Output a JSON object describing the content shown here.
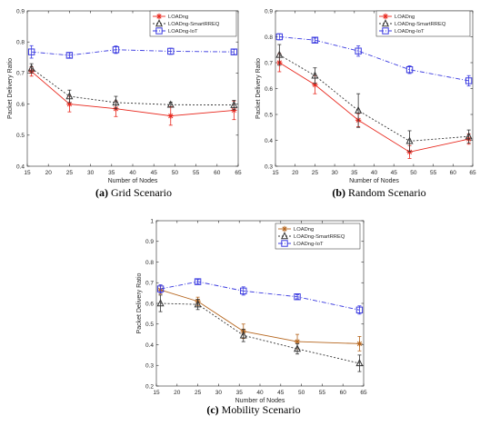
{
  "chart_data": [
    {
      "type": "line",
      "caption_label": "(a)",
      "caption_text": " Grid Scenario",
      "xlabel": "Number of Nodes",
      "ylabel": "Packet Delivery Ratio",
      "xlim": [
        15,
        65
      ],
      "ylim": [
        0.4,
        0.9
      ],
      "xticks": [
        15,
        20,
        25,
        30,
        35,
        40,
        45,
        50,
        55,
        60,
        65
      ],
      "yticks": [
        0.4,
        0.5,
        0.6,
        0.7,
        0.8,
        0.9
      ],
      "ytick_labels": [
        "0.4",
        "0.5",
        "0.6",
        "0.7",
        "0.8",
        "0.9"
      ],
      "grid": false,
      "legend_position": "top-right",
      "x": [
        16,
        25,
        36,
        49,
        64
      ],
      "series": [
        {
          "name": "LOADng",
          "color": "#e8261c",
          "marker": "star",
          "dash": "",
          "values": [
            0.705,
            0.6,
            0.585,
            0.562,
            0.58
          ],
          "errors": [
            0.015,
            0.025,
            0.025,
            0.03,
            0.03
          ]
        },
        {
          "name": "LOADng-SmartRREQ",
          "color": "#333333",
          "marker": "triangle",
          "dash": "2,2",
          "values": [
            0.715,
            0.625,
            0.605,
            0.598,
            0.597
          ],
          "errors": [
            0.015,
            0.02,
            0.02,
            0.008,
            0.015
          ]
        },
        {
          "name": "LOADng-IoT",
          "color": "#3a3ae0",
          "marker": "square",
          "dash": "5,2,1,2",
          "values": [
            0.768,
            0.757,
            0.775,
            0.77,
            0.768
          ],
          "errors": [
            0.02,
            0.008,
            0.012,
            0.01,
            0.008
          ]
        }
      ]
    },
    {
      "type": "line",
      "caption_label": "(b)",
      "caption_text": " Random Scenario",
      "xlabel": "Number of Nodes",
      "ylabel": "Packet Delivery Ratio",
      "xlim": [
        15,
        65
      ],
      "ylim": [
        0.3,
        0.9
      ],
      "xticks": [
        15,
        20,
        25,
        30,
        35,
        40,
        45,
        50,
        55,
        60,
        65
      ],
      "yticks": [
        0.3,
        0.4,
        0.5,
        0.6,
        0.7,
        0.8,
        0.9
      ],
      "ytick_labels": [
        "0.3",
        "0.4",
        "0.5",
        "0.6",
        "0.7",
        "0.8",
        "0.9"
      ],
      "grid": false,
      "legend_position": "top-right",
      "x": [
        16,
        25,
        36,
        49,
        64
      ],
      "series": [
        {
          "name": "LOADng",
          "color": "#e8261c",
          "marker": "star",
          "dash": "",
          "values": [
            0.7,
            0.615,
            0.478,
            0.355,
            0.405
          ],
          "errors": [
            0.035,
            0.035,
            0.025,
            0.025,
            0.02
          ]
        },
        {
          "name": "LOADng-SmartRREQ",
          "color": "#333333",
          "marker": "triangle",
          "dash": "2,2",
          "values": [
            0.73,
            0.65,
            0.515,
            0.397,
            0.415
          ],
          "errors": [
            0.04,
            0.03,
            0.065,
            0.04,
            0.025
          ]
        },
        {
          "name": "LOADng-IoT",
          "color": "#3a3ae0",
          "marker": "square",
          "dash": "5,2,1,2",
          "values": [
            0.8,
            0.787,
            0.745,
            0.673,
            0.63
          ],
          "errors": [
            0.012,
            0.008,
            0.02,
            0.015,
            0.02
          ]
        }
      ]
    },
    {
      "type": "line",
      "caption_label": "(c)",
      "caption_text": " Mobility Scenario",
      "xlabel": "Number of Nodes",
      "ylabel": "Packet Delivery Ratio",
      "xlim": [
        15,
        65
      ],
      "ylim": [
        0.2,
        1.0
      ],
      "xticks": [
        15,
        20,
        25,
        30,
        35,
        40,
        45,
        50,
        55,
        60,
        65
      ],
      "yticks": [
        0.2,
        0.3,
        0.4,
        0.5,
        0.6,
        0.7,
        0.8,
        0.9,
        1.0
      ],
      "ytick_labels": [
        "0.2",
        "0.3",
        "0.4",
        "0.5",
        "0.6",
        "0.7",
        "0.8",
        "0.9",
        "1"
      ],
      "grid": false,
      "legend_position": "top-right",
      "x": [
        16,
        25,
        36,
        49,
        64
      ],
      "series": [
        {
          "name": "LOADng",
          "color": "#b5651d",
          "marker": "star",
          "dash": "",
          "values": [
            0.665,
            0.61,
            0.465,
            0.415,
            0.405
          ],
          "errors": [
            0.02,
            0.02,
            0.035,
            0.035,
            0.035
          ]
        },
        {
          "name": "LOADng-SmartRREQ",
          "color": "#333333",
          "marker": "triangle",
          "dash": "2,2",
          "values": [
            0.6,
            0.595,
            0.445,
            0.38,
            0.31
          ],
          "errors": [
            0.04,
            0.025,
            0.03,
            0.025,
            0.04
          ]
        },
        {
          "name": "LOADng-IoT",
          "color": "#3a3ae0",
          "marker": "square",
          "dash": "5,2,1,2",
          "values": [
            0.67,
            0.705,
            0.66,
            0.632,
            0.568
          ],
          "errors": [
            0.02,
            0.01,
            0.02,
            0.01,
            0.02
          ]
        }
      ]
    }
  ]
}
